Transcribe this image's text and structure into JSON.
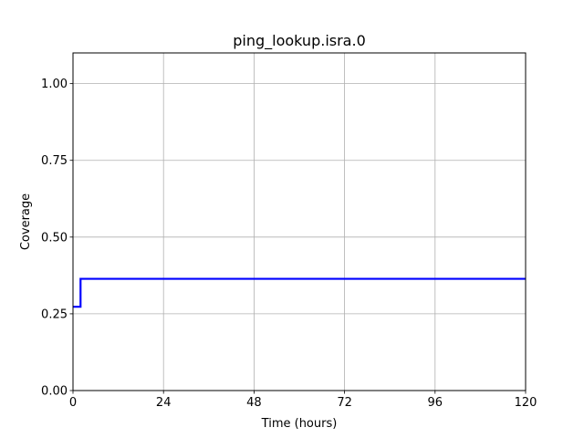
{
  "chart_data": {
    "type": "line",
    "title": "ping_lookup.isra.0",
    "xlabel": "Time (hours)",
    "ylabel": "Coverage",
    "xlim": [
      0,
      120
    ],
    "ylim": [
      0,
      1.1
    ],
    "xticks": [
      0,
      24,
      48,
      72,
      96,
      120
    ],
    "xtick_labels": [
      "0",
      "24",
      "48",
      "72",
      "96",
      "120"
    ],
    "yticks": [
      0,
      0.25,
      0.5,
      0.75,
      1.0
    ],
    "ytick_labels": [
      "0.00",
      "0.25",
      "0.50",
      "0.75",
      "1.00"
    ],
    "grid": true,
    "series": [
      {
        "color": "#0000ff",
        "step": true,
        "x": [
          0,
          2,
          120
        ],
        "y": [
          0.273,
          0.364,
          0.364
        ]
      }
    ]
  }
}
